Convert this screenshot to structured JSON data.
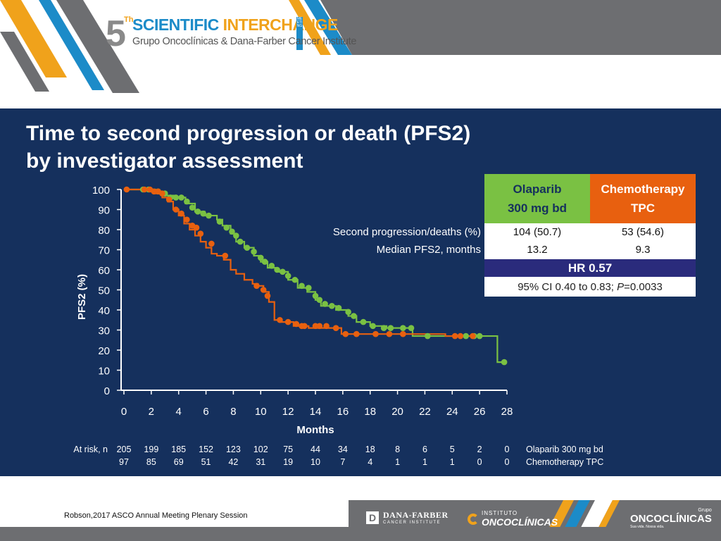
{
  "header": {
    "logo_number": "5",
    "logo_superscript": "Th",
    "logo_word1": "SCIENTIFIC",
    "logo_word2": "INTERCHANGE",
    "logo_meeting": "MEETING",
    "logo_subtitle": "Grupo Oncoclínicas & Dana-Farber Cancer Institute"
  },
  "slide_title": [
    "Time to second progression or death (PFS2)",
    "by investigator assessment"
  ],
  "colors": {
    "background": "#15305d",
    "olaparib": "#7ac143",
    "chemotherapy": "#e8600f",
    "hr_band": "#2a2b7c"
  },
  "chart_data": {
    "type": "line",
    "subtype": "kaplan-meier step",
    "xlabel": "Months",
    "ylabel": "PFS2 (%)",
    "xlim": [
      0,
      28
    ],
    "ylim": [
      0,
      100
    ],
    "x_ticks": [
      "0",
      "2",
      "4",
      "6",
      "8",
      "10",
      "12",
      "14",
      "16",
      "18",
      "20",
      "22",
      "24",
      "26",
      "28"
    ],
    "y_ticks": [
      "0",
      "10",
      "20",
      "30",
      "40",
      "50",
      "60",
      "70",
      "80",
      "90",
      "100"
    ],
    "series": [
      {
        "name": "Olaparib 300 mg bd",
        "color": "#7ac143",
        "steps": [
          [
            0,
            100
          ],
          [
            1.4,
            100
          ],
          [
            2.3,
            99
          ],
          [
            2.8,
            97
          ],
          [
            3.8,
            96
          ],
          [
            4.5,
            93
          ],
          [
            5.2,
            89
          ],
          [
            5.9,
            87
          ],
          [
            6.8,
            85
          ],
          [
            7.2,
            82
          ],
          [
            7.8,
            78
          ],
          [
            8.2,
            74
          ],
          [
            8.8,
            71
          ],
          [
            9.5,
            67
          ],
          [
            10,
            64
          ],
          [
            10.5,
            61
          ],
          [
            11.2,
            59
          ],
          [
            12,
            55
          ],
          [
            12.7,
            51
          ],
          [
            13.4,
            49
          ],
          [
            14,
            45
          ],
          [
            14.4,
            42
          ],
          [
            15.5,
            40
          ],
          [
            16.4,
            37
          ],
          [
            17,
            34
          ],
          [
            18,
            32
          ],
          [
            19.2,
            31
          ],
          [
            21,
            30
          ],
          [
            21.1,
            27
          ],
          [
            27.2,
            27
          ],
          [
            27.3,
            14
          ],
          [
            28,
            14
          ]
        ],
        "markers": [
          [
            1.4,
            100
          ],
          [
            1.8,
            100
          ],
          [
            2.5,
            99
          ],
          [
            3,
            98
          ],
          [
            3.4,
            96
          ],
          [
            3.8,
            96
          ],
          [
            4.2,
            96
          ],
          [
            4.6,
            94
          ],
          [
            5,
            91
          ],
          [
            5.4,
            89
          ],
          [
            5.8,
            88
          ],
          [
            6.2,
            87
          ],
          [
            7,
            84
          ],
          [
            7.5,
            81
          ],
          [
            7.9,
            79
          ],
          [
            8.2,
            77
          ],
          [
            8.5,
            74
          ],
          [
            9,
            71
          ],
          [
            9.5,
            69
          ],
          [
            10,
            66
          ],
          [
            10.3,
            64
          ],
          [
            10.8,
            62
          ],
          [
            11.2,
            60
          ],
          [
            11.6,
            59
          ],
          [
            12,
            57
          ],
          [
            12.5,
            55
          ],
          [
            13,
            52
          ],
          [
            13.5,
            51
          ],
          [
            14,
            47
          ],
          [
            14.3,
            45
          ],
          [
            14.7,
            43
          ],
          [
            15.2,
            42
          ],
          [
            15.7,
            41
          ],
          [
            16.4,
            39
          ],
          [
            16.8,
            37
          ],
          [
            17.5,
            34
          ],
          [
            18.2,
            32
          ],
          [
            19,
            31
          ],
          [
            19.5,
            31
          ],
          [
            20.4,
            31
          ],
          [
            21,
            31
          ],
          [
            22.2,
            27
          ],
          [
            25,
            27
          ],
          [
            25.6,
            27
          ],
          [
            26,
            27
          ],
          [
            27.8,
            14
          ]
        ]
      },
      {
        "name": "Chemotherapy TPC",
        "color": "#e8600f",
        "steps": [
          [
            0,
            100
          ],
          [
            1.7,
            100
          ],
          [
            2.2,
            98
          ],
          [
            2.8,
            96
          ],
          [
            3.2,
            94
          ],
          [
            3.6,
            90
          ],
          [
            4,
            87
          ],
          [
            4.4,
            83
          ],
          [
            4.8,
            80
          ],
          [
            5.2,
            77
          ],
          [
            5.6,
            74
          ],
          [
            6,
            71
          ],
          [
            6.4,
            68
          ],
          [
            6.8,
            67
          ],
          [
            7.3,
            65
          ],
          [
            7.8,
            60
          ],
          [
            8.2,
            58
          ],
          [
            8.8,
            55
          ],
          [
            9.4,
            53
          ],
          [
            9.8,
            52
          ],
          [
            10.2,
            49
          ],
          [
            10.6,
            44
          ],
          [
            11,
            35
          ],
          [
            11.5,
            34
          ],
          [
            12.4,
            32
          ],
          [
            13.5,
            31
          ],
          [
            15.8,
            31
          ],
          [
            15.9,
            28
          ],
          [
            23.4,
            28
          ],
          [
            23.5,
            27
          ],
          [
            25.5,
            27
          ]
        ],
        "markers": [
          [
            0.2,
            100
          ],
          [
            1.5,
            100
          ],
          [
            1.9,
            100
          ],
          [
            2.2,
            99
          ],
          [
            2.5,
            99
          ],
          [
            2.8,
            98
          ],
          [
            3.3,
            95
          ],
          [
            3.8,
            90
          ],
          [
            4.2,
            88
          ],
          [
            4.6,
            85
          ],
          [
            5,
            82
          ],
          [
            5.3,
            81
          ],
          [
            5.6,
            78
          ],
          [
            6.4,
            73
          ],
          [
            7.4,
            67
          ],
          [
            9.7,
            52
          ],
          [
            10.2,
            50
          ],
          [
            10.5,
            47
          ],
          [
            11.4,
            35
          ],
          [
            12,
            34
          ],
          [
            12.6,
            33
          ],
          [
            13,
            32
          ],
          [
            13.2,
            32
          ],
          [
            14,
            32
          ],
          [
            14.3,
            32
          ],
          [
            14.8,
            32
          ],
          [
            15.5,
            31
          ],
          [
            16.2,
            28
          ],
          [
            17,
            28
          ],
          [
            18.4,
            28
          ],
          [
            19.4,
            28
          ],
          [
            20.4,
            28
          ],
          [
            24.2,
            27
          ],
          [
            24.6,
            27
          ],
          [
            25.5,
            27
          ]
        ]
      }
    ],
    "at_risk_label": "At risk, n",
    "at_risk": [
      {
        "name": "Olaparib 300 mg bd",
        "values": [
          "205",
          "199",
          "185",
          "152",
          "123",
          "102",
          "75",
          "44",
          "34",
          "18",
          "8",
          "6",
          "5",
          "2",
          "0"
        ]
      },
      {
        "name": "Chemotherapy TPC",
        "values": [
          "97",
          "85",
          "69",
          "51",
          "42",
          "31",
          "19",
          "10",
          "7",
          "4",
          "1",
          "1",
          "1",
          "0",
          "0"
        ]
      }
    ]
  },
  "results_table": {
    "header_olaparib": [
      "Olaparib",
      "300 mg bd"
    ],
    "header_chemo": [
      "Chemotherapy",
      "TPC"
    ],
    "rows": [
      {
        "label": "Second progression/deaths  (%)",
        "olaparib": "104 (50.7)",
        "chemo": "53 (54.6)"
      },
      {
        "label": "Median PFS2, months",
        "olaparib": "13.2",
        "chemo": "9.3"
      }
    ],
    "hr": "HR 0.57",
    "ci_prefix": "95% CI 0.40 to 0.83; ",
    "ci_p": "P",
    "ci_suffix": "=0.0033"
  },
  "footer": {
    "citation": "Robson,2017 ASCO Annual Meeting Plenary Session",
    "dana_farber_name": "DANA-FARBER",
    "dana_farber_sub": "CANCER INSTITUTE",
    "dana_farber_mark": "D",
    "instituto_top": "INSTITUTO",
    "instituto_main": "ONCOCLÍNICAS",
    "grupo_top": "Grupo",
    "grupo_main": "ONCOCLÍNICAS",
    "grupo_tagline": "Sua vida. Nossa vida."
  }
}
